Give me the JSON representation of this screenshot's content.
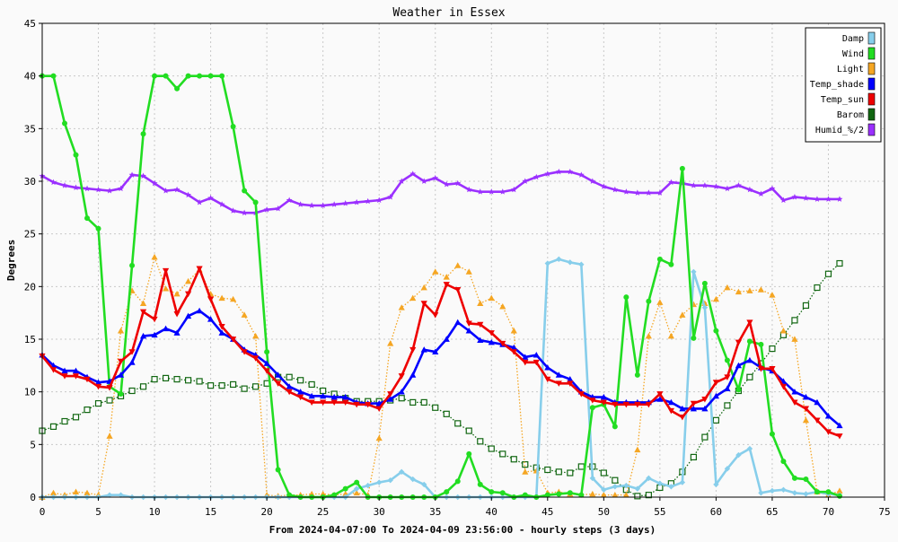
{
  "chart_data": {
    "type": "line",
    "title": "Weather in Essex",
    "xlabel": "From 2024-04-07:00 To 2024-04-09 23:56:00 - hourly steps (3 days)",
    "ylabel": "Degrees",
    "xlim": [
      0,
      75
    ],
    "ylim": [
      0,
      45
    ],
    "xticks": [
      0,
      5,
      10,
      15,
      20,
      25,
      30,
      35,
      40,
      45,
      50,
      55,
      60,
      65,
      70,
      75
    ],
    "yticks": [
      0,
      5,
      10,
      15,
      20,
      25,
      30,
      35,
      40,
      45
    ],
    "grid": true,
    "legend_position": "top-right",
    "series": [
      {
        "name": "Damp",
        "color": "#87ceeb",
        "marker": "diamond",
        "dash": "solid",
        "values": [
          0,
          0,
          0,
          0,
          0,
          0,
          0.2,
          0.2,
          0,
          0,
          0,
          0,
          0,
          0,
          0,
          0,
          0,
          0,
          0,
          0,
          0,
          0,
          0,
          0,
          0,
          0,
          0,
          0,
          0.8,
          1.1,
          1.4,
          1.6,
          2.4,
          1.7,
          1.2,
          0,
          0,
          0,
          0,
          0,
          0,
          0,
          0,
          0,
          0,
          22.2,
          22.6,
          22.3,
          22.1,
          1.8,
          0.7,
          1.0,
          1.1,
          0.8,
          1.8,
          1.3,
          1.0,
          1.4,
          21.4,
          18.0,
          1.2,
          2.7,
          4.0,
          4.6,
          0.4,
          0.6,
          0.7,
          0.4,
          0.3,
          0.5,
          0.3,
          0.2
        ]
      },
      {
        "name": "Wind",
        "color": "#22dd22",
        "marker": "circle",
        "dash": "solid",
        "values": [
          40,
          40,
          35.5,
          32.5,
          26.5,
          25.5,
          10.5,
          9.8,
          22,
          34.5,
          40,
          40,
          38.8,
          40,
          40,
          40,
          40,
          35.2,
          29.1,
          28,
          13.8,
          2.6,
          0.2,
          0,
          0,
          0,
          0.2,
          0.8,
          1.4,
          0,
          0,
          0,
          0,
          0,
          0,
          0,
          0.5,
          1.5,
          4.1,
          1.2,
          0.5,
          0.4,
          0,
          0.2,
          0,
          0.2,
          0.3,
          0.4,
          0.2,
          8.5,
          8.8,
          6.7,
          19,
          11.6,
          18.6,
          22.6,
          22.1,
          31.2,
          15.1,
          20.3,
          15.8,
          13,
          10.2,
          14.8,
          14.5,
          6,
          3.4,
          1.8,
          1.7,
          0.5,
          0.5,
          0.1
        ]
      },
      {
        "name": "Light",
        "color": "#f5a623",
        "marker": "triangle-up",
        "dash": "dotted",
        "values": [
          0,
          0.4,
          0.2,
          0.5,
          0.4,
          0.2,
          5.8,
          15.8,
          19.6,
          18.4,
          22.8,
          19.8,
          19.3,
          20.5,
          21.6,
          19.3,
          18.9,
          18.8,
          17.3,
          15.3,
          0.2,
          0.1,
          0.2,
          0.2,
          0.3,
          0.3,
          0.2,
          0.3,
          0.4,
          0.2,
          5.6,
          14.6,
          18,
          18.9,
          19.9,
          21.4,
          20.9,
          22,
          21.4,
          18.4,
          18.9,
          18.1,
          15.8,
          2.4,
          2.5,
          0.4,
          0.5,
          0.3,
          0.2,
          0.3,
          0.2,
          0.2,
          0.2,
          4.5,
          15.3,
          18.5,
          15.3,
          17.3,
          18.3,
          18.4,
          18.8,
          19.9,
          19.5,
          19.6,
          19.7,
          19.2,
          15.8,
          15,
          7.3,
          0.5,
          0.2,
          0.6
        ]
      },
      {
        "name": "Temp_shade",
        "color": "#0000ff",
        "marker": "triangle-up",
        "dash": "solid",
        "values": [
          13.5,
          12.5,
          12,
          12,
          11.4,
          10.9,
          11,
          11.6,
          12.8,
          15.3,
          15.4,
          16,
          15.6,
          17.2,
          17.7,
          16.9,
          15.6,
          15,
          14,
          13.5,
          12.7,
          11.6,
          10.5,
          10,
          9.6,
          9.6,
          9.5,
          9.5,
          9,
          8.9,
          8.9,
          9.3,
          10,
          11.6,
          14,
          13.8,
          15,
          16.6,
          15.8,
          14.9,
          14.7,
          14.5,
          14.2,
          13.3,
          13.5,
          12.3,
          11.6,
          11.2,
          10,
          9.5,
          9.5,
          9,
          9,
          9,
          9,
          9.3,
          9,
          8.4,
          8.4,
          8.4,
          9.6,
          10.3,
          12.5,
          13,
          12.3,
          12,
          11,
          10,
          9.5,
          9,
          7.7,
          6.8
        ]
      },
      {
        "name": "Temp_sun",
        "color": "#ee0000",
        "marker": "triangle-down",
        "dash": "solid",
        "values": [
          13.4,
          12.1,
          11.5,
          11.5,
          11.2,
          10.5,
          10.4,
          12.9,
          13.8,
          17.6,
          16.9,
          21.5,
          17.4,
          19.3,
          21.7,
          18.8,
          16.2,
          15,
          13.8,
          13.2,
          12,
          10.8,
          10,
          9.5,
          9,
          9,
          9,
          9,
          8.8,
          8.8,
          8.4,
          9.8,
          11.5,
          14,
          18.4,
          17.3,
          20.2,
          19.7,
          16.5,
          16.4,
          15.6,
          14.6,
          13.8,
          12.8,
          12.8,
          11.2,
          10.8,
          10.8,
          9.8,
          9.2,
          9,
          8.8,
          8.8,
          8.8,
          8.8,
          9.8,
          8.2,
          7.6,
          8.9,
          9.3,
          10.9,
          11.4,
          14.7,
          16.6,
          12.2,
          12.2,
          10.5,
          9,
          8.4,
          7.3,
          6.2,
          5.8
        ]
      },
      {
        "name": "Barom",
        "color": "#116611",
        "marker": "open-square",
        "dash": "dotted",
        "values": [
          6.3,
          6.7,
          7.2,
          7.6,
          8.3,
          8.9,
          9.2,
          9.6,
          10.1,
          10.5,
          11.2,
          11.3,
          11.2,
          11.1,
          11,
          10.6,
          10.6,
          10.7,
          10.3,
          10.5,
          10.8,
          11.4,
          11.4,
          11.1,
          10.7,
          10.1,
          9.8,
          9.4,
          9.1,
          9.1,
          9.1,
          9.2,
          9.4,
          9,
          9,
          8.5,
          7.9,
          7,
          6.3,
          5.3,
          4.6,
          4.1,
          3.6,
          3.1,
          2.8,
          2.6,
          2.4,
          2.3,
          2.9,
          2.9,
          2.3,
          1.6,
          0.7,
          0.1,
          0.2,
          0.9,
          1.3,
          2.4,
          3.8,
          5.7,
          7.3,
          8.7,
          10.1,
          11.4,
          12.7,
          14.1,
          15.4,
          16.8,
          18.2,
          19.9,
          21.2,
          22.2
        ]
      },
      {
        "name": "Humid_%/2",
        "color": "#9b30ff",
        "marker": "star",
        "dash": "solid",
        "values": [
          30.5,
          29.9,
          29.6,
          29.4,
          29.3,
          29.2,
          29.1,
          29.3,
          30.6,
          30.5,
          29.8,
          29.1,
          29.2,
          28.7,
          28,
          28.4,
          27.8,
          27.2,
          27,
          27,
          27.3,
          27.4,
          28.2,
          27.8,
          27.7,
          27.7,
          27.8,
          27.9,
          28,
          28.1,
          28.2,
          28.5,
          30,
          30.7,
          30,
          30.3,
          29.7,
          29.8,
          29.2,
          29,
          29,
          29,
          29.2,
          30,
          30.4,
          30.7,
          30.9,
          30.9,
          30.6,
          30,
          29.5,
          29.2,
          29,
          28.9,
          28.9,
          28.9,
          29.9,
          29.8,
          29.6,
          29.6,
          29.5,
          29.3,
          29.6,
          29.2,
          28.8,
          29.3,
          28.2,
          28.5,
          28.4,
          28.3,
          28.3,
          28.3
        ]
      }
    ]
  }
}
